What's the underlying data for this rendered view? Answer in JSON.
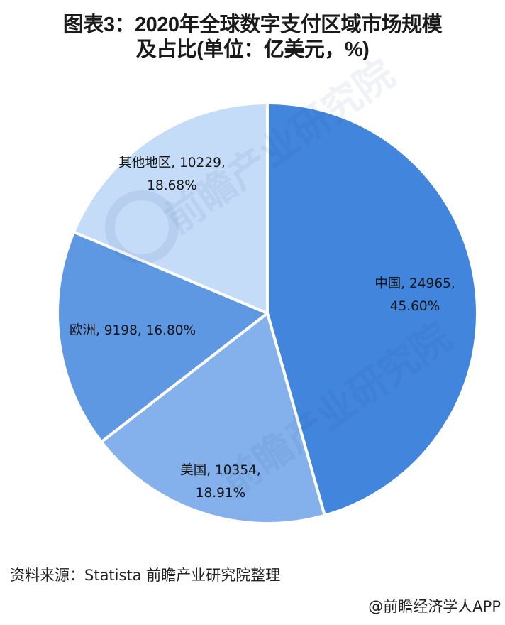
{
  "title": {
    "line1": "图表3：2020年全球数字支付区域市场规模",
    "line2": "及占比(单位：亿美元，%)"
  },
  "chart_data": {
    "type": "pie",
    "title": "图表3：2020年全球数字支付区域市场规模及占比(单位：亿美元，%)",
    "unit": "亿美元",
    "categories": [
      "中国",
      "美国",
      "欧洲",
      "其他地区"
    ],
    "values": [
      24965,
      10354,
      9198,
      10229
    ],
    "percentages": [
      45.6,
      18.91,
      16.8,
      18.68
    ],
    "colors": [
      "#4285dd",
      "#84b0ec",
      "#5e98e3",
      "#c5dcf8"
    ],
    "start_angle": "12 o'clock, clockwise",
    "legend": "none (data labels on slices)"
  },
  "labels": {
    "china": {
      "line1": "中国, 24965,",
      "line2": "45.60%"
    },
    "usa": {
      "line1": "美国, 10354,",
      "line2": "18.91%"
    },
    "europe": {
      "line1": "欧洲, 9198, 16.80%"
    },
    "others": {
      "line1": "其他地区, 10229,",
      "line2": "18.68%"
    }
  },
  "footer": {
    "source": "资料来源：Statista 前瞻产业研究院整理",
    "credit": "@前瞻经济学人APP"
  },
  "watermark": {
    "text": "前瞻产业研究院"
  }
}
